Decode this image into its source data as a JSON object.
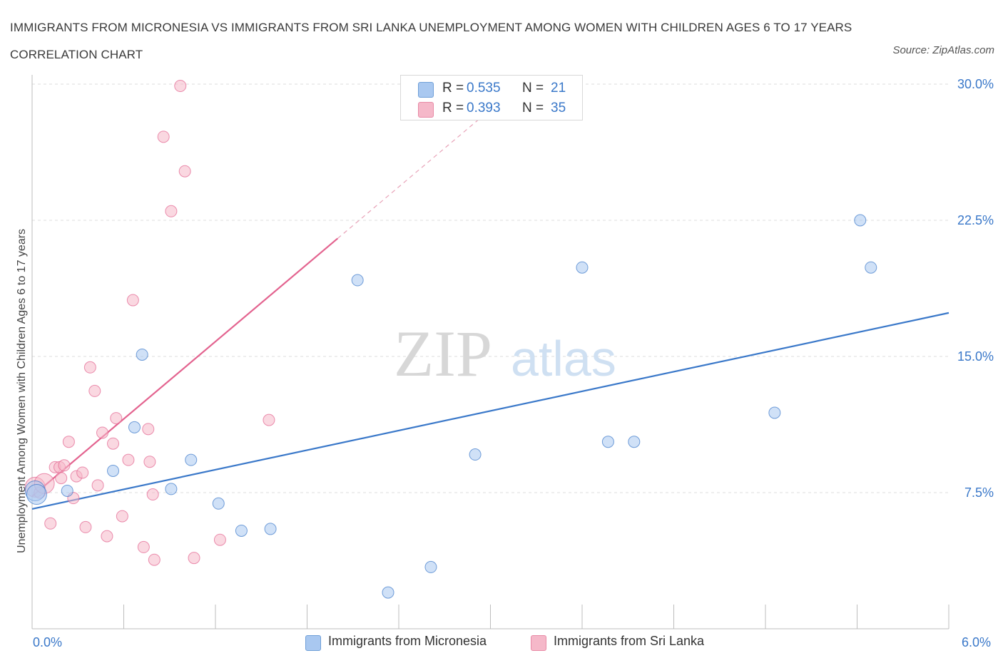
{
  "header": {
    "title": "IMMIGRANTS FROM MICRONESIA VS IMMIGRANTS FROM SRI LANKA UNEMPLOYMENT AMONG WOMEN WITH CHILDREN AGES 6 TO 17 YEARS CORRELATION CHART",
    "source": "Source: ZipAtlas.com"
  },
  "watermark": {
    "zip": "ZIP",
    "atlas": "atlas"
  },
  "legend": {
    "rows": [
      {
        "r_label": "R =",
        "r_value": "0.535",
        "n_label": "N =",
        "n_value": "21",
        "color": "#a9c8f0"
      },
      {
        "r_label": "R =",
        "r_value": "0.393",
        "n_label": "N =",
        "n_value": "35",
        "color": "#f5b8c9"
      }
    ]
  },
  "chart_data": {
    "type": "scatter",
    "title": "IMMIGRANTS FROM MICRONESIA VS IMMIGRANTS FROM SRI LANKA UNEMPLOYMENT AMONG WOMEN WITH CHILDREN AGES 6 TO 17 YEARS CORRELATION CHART",
    "xlabel": "",
    "ylabel": "Unemployment Among Women with Children Ages 6 to 17 years",
    "xlim": [
      0,
      6
    ],
    "ylim": [
      0,
      30
    ],
    "x_tick_labels": [
      "0.0%",
      "6.0%"
    ],
    "y_tick_labels": [
      "7.5%",
      "15.0%",
      "22.5%",
      "30.0%"
    ],
    "y_ticks": [
      7.5,
      15,
      22.5,
      30
    ],
    "grid": true,
    "legend_position": "bottom",
    "series": [
      {
        "name": "Immigrants from Micronesia",
        "color": "#3a78c9",
        "fill": "#a9c8f0",
        "x": [
          0.02,
          0.03,
          0.23,
          0.53,
          0.67,
          0.72,
          0.91,
          1.04,
          1.22,
          1.37,
          1.56,
          2.13,
          2.33,
          2.61,
          2.9,
          3.6,
          3.77,
          3.94,
          4.86,
          5.42,
          5.49
        ],
        "y": [
          7.6,
          7.4,
          7.6,
          8.7,
          11.1,
          15.1,
          7.7,
          9.3,
          6.9,
          5.4,
          5.5,
          19.2,
          2.0,
          3.4,
          9.6,
          19.9,
          10.3,
          10.3,
          11.9,
          22.5,
          19.9
        ],
        "trend": {
          "x": [
            0,
            6
          ],
          "y": [
            6.6,
            17.4
          ]
        }
      },
      {
        "name": "Immigrants from Sri Lanka",
        "color": "#e3638f",
        "fill": "#f5b8c9",
        "x": [
          0.02,
          0.05,
          0.08,
          0.12,
          0.15,
          0.18,
          0.19,
          0.21,
          0.24,
          0.27,
          0.29,
          0.33,
          0.35,
          0.38,
          0.41,
          0.43,
          0.46,
          0.49,
          0.53,
          0.55,
          0.59,
          0.63,
          0.66,
          0.73,
          0.76,
          0.77,
          0.79,
          0.8,
          0.86,
          0.91,
          0.97,
          1.0,
          1.06,
          1.23,
          1.55
        ],
        "y": [
          7.8,
          7.5,
          8.0,
          5.8,
          8.9,
          8.9,
          8.3,
          9.0,
          10.3,
          7.2,
          8.4,
          8.6,
          5.6,
          14.4,
          13.1,
          7.9,
          10.8,
          5.1,
          10.2,
          11.6,
          6.2,
          9.3,
          18.1,
          4.5,
          11.0,
          9.2,
          7.4,
          3.8,
          27.1,
          23.0,
          29.9,
          25.2,
          3.9,
          4.9,
          11.5
        ],
        "trend": {
          "x": [
            0,
            2.0
          ],
          "y": [
            7.3,
            21.5
          ]
        }
      }
    ]
  }
}
